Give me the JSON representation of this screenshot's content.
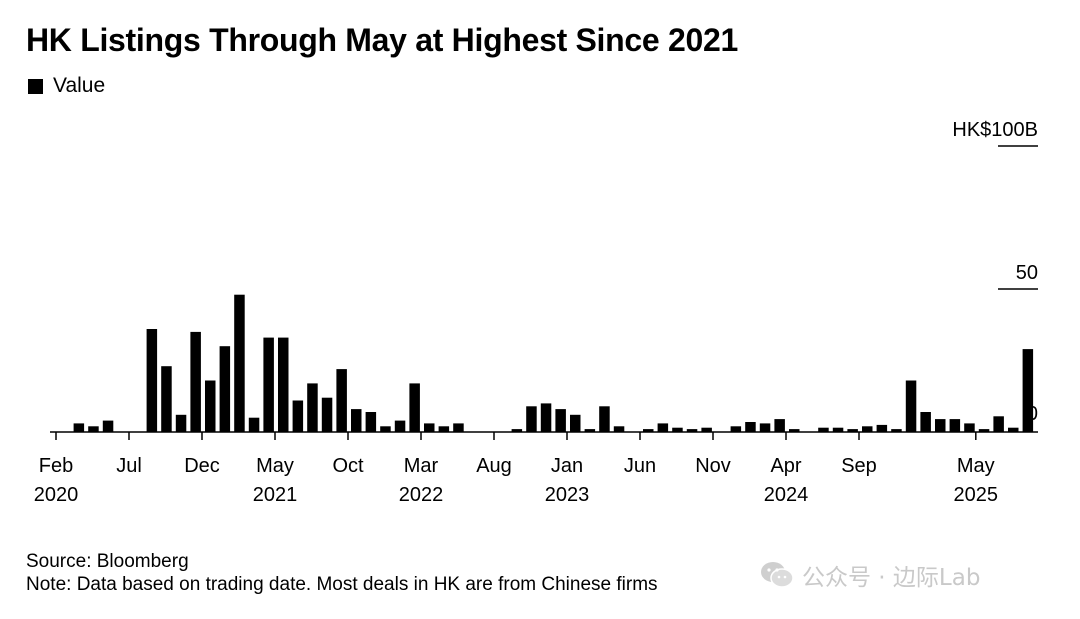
{
  "title": "HK Listings Through May at Highest Since 2021",
  "legend": {
    "label": "Value",
    "color": "#000000"
  },
  "footer": {
    "source": "Source: Bloomberg",
    "note": "Note: Data based on trading date. Most deals in HK are from Chinese firms"
  },
  "watermark": {
    "text": "公众号 · 边际Lab",
    "icon": "wechat-icon"
  },
  "chart_data": {
    "type": "bar",
    "title": "HK Listings Through May at Highest Since 2021",
    "series": [
      {
        "name": "Value",
        "color": "#000000",
        "values": [
          0,
          3,
          2,
          4,
          0,
          0,
          36,
          23,
          6,
          35,
          18,
          30,
          48,
          5,
          33,
          33,
          11,
          17,
          12,
          22,
          8,
          7,
          2,
          4,
          17,
          3,
          2,
          3,
          0,
          0,
          0,
          1,
          9,
          10,
          8,
          6,
          1,
          9,
          2,
          0,
          1,
          3,
          1.5,
          1,
          1.5,
          0,
          2,
          3.5,
          3,
          4.5,
          1,
          0,
          1.5,
          1.5,
          1,
          2,
          2.5,
          1,
          18,
          7,
          4.5,
          4.5,
          3,
          1,
          5.5,
          1.5,
          29
        ]
      }
    ],
    "unit_label": "HK$100B",
    "yticks": [
      0,
      50
    ],
    "ylim": [
      0,
      100
    ],
    "xticks": [
      {
        "index": 0,
        "label": "Feb",
        "year": "2020"
      },
      {
        "index": 5,
        "label": "Jul",
        "year": ""
      },
      {
        "index": 10,
        "label": "Dec",
        "year": ""
      },
      {
        "index": 15,
        "label": "May",
        "year": "2021"
      },
      {
        "index": 20,
        "label": "Oct",
        "year": ""
      },
      {
        "index": 25,
        "label": "Mar",
        "year": "2022"
      },
      {
        "index": 30,
        "label": "Aug",
        "year": ""
      },
      {
        "index": 35,
        "label": "Jan",
        "year": "2023"
      },
      {
        "index": 40,
        "label": "Jun",
        "year": ""
      },
      {
        "index": 45,
        "label": "Nov",
        "year": ""
      },
      {
        "index": 50,
        "label": "Apr",
        "year": "2024"
      },
      {
        "index": 55,
        "label": "Sep",
        "year": ""
      },
      {
        "index": 63,
        "label": "May",
        "year": "2025"
      }
    ],
    "grid": false,
    "legend_position": "top-left"
  }
}
